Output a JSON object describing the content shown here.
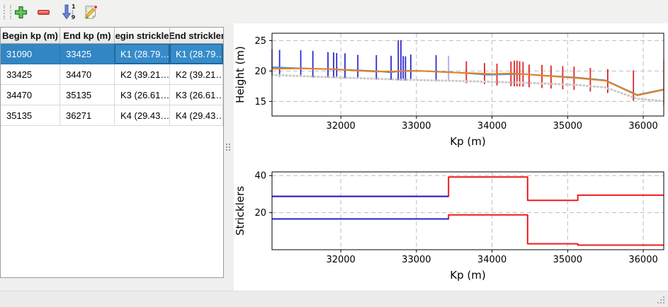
{
  "toolbar": {
    "buttons": [
      {
        "name": "add-row",
        "icon": "plus-icon",
        "color": "#4caf50"
      },
      {
        "name": "remove-row",
        "icon": "minus-icon",
        "color": "#e8504a"
      },
      {
        "name": "sort-rows",
        "icon": "sort-numeric-down-icon",
        "color": "#5f7fd0",
        "digits_top": "1",
        "digits_bottom": "9"
      },
      {
        "name": "edit",
        "icon": "edit-pencil-icon",
        "color": "#f0c040"
      }
    ]
  },
  "table": {
    "headers": [
      "Begin kp (m)",
      "End kp (m)",
      "egin strickle",
      "End strickler"
    ],
    "rows": [
      [
        "31090",
        "33425",
        "K1 (28.79…",
        "K1 (28.79…"
      ],
      [
        "33425",
        "34470",
        "K2 (39.21…",
        "K2 (39.21…"
      ],
      [
        "34470",
        "35135",
        "K3 (26.61…",
        "K3 (26.61…"
      ],
      [
        "35135",
        "36271",
        "K4 (29.43…",
        "K4 (29.43…"
      ]
    ],
    "selected_row_index": 0,
    "selection_color": "#3186c3"
  },
  "chart_data": [
    {
      "type": "line",
      "title": "",
      "xlabel": "Kp (m)",
      "ylabel": "Height (m)",
      "xlim": [
        31090,
        36271
      ],
      "ylim": [
        12.6,
        26.2
      ],
      "xticks": [
        32000,
        33000,
        34000,
        35000,
        36000
      ],
      "yticks": [
        15,
        20,
        25
      ],
      "grid": true,
      "legend": "none",
      "series": [
        {
          "name": "ground-dotted-line",
          "color": "#c9c9c9",
          "width": 3,
          "dash": "1,4",
          "points": [
            [
              31090,
              19.35
            ],
            [
              31800,
              19.0
            ],
            [
              32500,
              18.7
            ],
            [
              33000,
              18.52
            ],
            [
              33500,
              18.38
            ],
            [
              34000,
              18.22
            ],
            [
              34470,
              18.05
            ],
            [
              34800,
              17.88
            ],
            [
              35135,
              17.7
            ],
            [
              35500,
              17.3
            ],
            [
              35920,
              15.45
            ],
            [
              36271,
              15.05
            ]
          ]
        },
        {
          "name": "water-level-blue-line",
          "color": "#4d8fd1",
          "width": 2,
          "points": [
            [
              31090,
              20.62
            ],
            [
              31450,
              20.45
            ],
            [
              31900,
              20.28
            ],
            [
              32250,
              20.1
            ],
            [
              32500,
              19.95
            ],
            [
              32650,
              19.78
            ],
            [
              32800,
              19.98
            ],
            [
              33050,
              20.02
            ],
            [
              33425,
              19.82
            ],
            [
              33700,
              19.6
            ],
            [
              33950,
              19.38
            ],
            [
              34150,
              19.45
            ],
            [
              34400,
              19.5
            ],
            [
              34650,
              19.28
            ],
            [
              34800,
              19.17
            ],
            [
              35135,
              18.9
            ],
            [
              35500,
              18.47
            ],
            [
              35920,
              16.07
            ],
            [
              36271,
              16.97
            ]
          ]
        },
        {
          "name": "bed-level-orange-line",
          "color": "#e8821e",
          "width": 2,
          "points": [
            [
              31090,
              20.35
            ],
            [
              31500,
              20.42
            ],
            [
              31900,
              20.3
            ],
            [
              32200,
              20.05
            ],
            [
              32450,
              19.9
            ],
            [
              32700,
              19.93
            ],
            [
              32900,
              20.08
            ],
            [
              33100,
              19.98
            ],
            [
              33425,
              19.78
            ],
            [
              33800,
              19.62
            ],
            [
              34000,
              19.52
            ],
            [
              34300,
              19.62
            ],
            [
              34500,
              19.4
            ],
            [
              34800,
              19.12
            ],
            [
              35135,
              18.82
            ],
            [
              35500,
              18.4
            ],
            [
              35920,
              15.98
            ],
            [
              36271,
              16.9
            ]
          ]
        }
      ],
      "spikes": [
        {
          "x": 31090,
          "y0": 19.3,
          "y1": 23.6,
          "color": "#9b7fd4"
        },
        {
          "x": 31190,
          "y0": 19.05,
          "y1": 23.45,
          "color": "#2e2bd0"
        },
        {
          "x": 31470,
          "y0": 19.0,
          "y1": 23.4,
          "color": "#2e2bd0"
        },
        {
          "x": 31630,
          "y0": 18.95,
          "y1": 23.3,
          "color": "#2e2bd0"
        },
        {
          "x": 31830,
          "y0": 18.9,
          "y1": 23.1,
          "color": "#2e2bd0"
        },
        {
          "x": 31905,
          "y0": 18.85,
          "y1": 23.05,
          "color": "#2e2bd0"
        },
        {
          "x": 31945,
          "y0": 18.85,
          "y1": 22.95,
          "color": "#2e2bd0"
        },
        {
          "x": 32055,
          "y0": 18.8,
          "y1": 22.9,
          "color": "#2e2bd0"
        },
        {
          "x": 32225,
          "y0": 18.72,
          "y1": 22.65,
          "color": "#2e2bd0"
        },
        {
          "x": 32470,
          "y0": 18.6,
          "y1": 22.6,
          "color": "#2e2bd0"
        },
        {
          "x": 32665,
          "y0": 18.52,
          "y1": 22.5,
          "color": "#2e2bd0"
        },
        {
          "x": 32760,
          "y0": 18.48,
          "y1": 25.05,
          "color": "#2e2bd0"
        },
        {
          "x": 32795,
          "y0": 18.45,
          "y1": 25.05,
          "color": "#2e2bd0"
        },
        {
          "x": 32825,
          "y0": 18.45,
          "y1": 22.45,
          "color": "#2e2bd0"
        },
        {
          "x": 32855,
          "y0": 18.42,
          "y1": 22.4,
          "color": "#2e2bd0"
        },
        {
          "x": 32925,
          "y0": 18.4,
          "y1": 22.7,
          "color": "#2e2bd0"
        },
        {
          "x": 33260,
          "y0": 18.3,
          "y1": 22.6,
          "color": "#2e2bd0"
        },
        {
          "x": 33425,
          "y0": 18.28,
          "y1": 22.5,
          "color": "#b9a3e3"
        },
        {
          "x": 33660,
          "y0": 18.0,
          "y1": 21.6,
          "color": "#e02525"
        },
        {
          "x": 33900,
          "y0": 17.85,
          "y1": 21.3,
          "color": "#e02525"
        },
        {
          "x": 34065,
          "y0": 17.62,
          "y1": 21.2,
          "color": "#e02525"
        },
        {
          "x": 34250,
          "y0": 17.5,
          "y1": 21.55,
          "color": "#e02525"
        },
        {
          "x": 34295,
          "y0": 17.48,
          "y1": 21.7,
          "color": "#e02525"
        },
        {
          "x": 34330,
          "y0": 17.46,
          "y1": 21.7,
          "color": "#e02525"
        },
        {
          "x": 34365,
          "y0": 17.45,
          "y1": 21.6,
          "color": "#e02525"
        },
        {
          "x": 34410,
          "y0": 17.42,
          "y1": 21.5,
          "color": "#e02525"
        },
        {
          "x": 34490,
          "y0": 17.32,
          "y1": 21.05,
          "color": "#e02525"
        },
        {
          "x": 34660,
          "y0": 17.2,
          "y1": 21.0,
          "color": "#e02525"
        },
        {
          "x": 34780,
          "y0": 17.12,
          "y1": 20.9,
          "color": "#e02525"
        },
        {
          "x": 34935,
          "y0": 17.0,
          "y1": 20.8,
          "color": "#e02525"
        },
        {
          "x": 35085,
          "y0": 16.9,
          "y1": 20.7,
          "color": "#e02525"
        },
        {
          "x": 35300,
          "y0": 16.62,
          "y1": 20.5,
          "color": "#e02525"
        },
        {
          "x": 35530,
          "y0": 16.38,
          "y1": 20.3,
          "color": "#e02525"
        },
        {
          "x": 35870,
          "y0": 15.1,
          "y1": 20.1,
          "color": "#e02525"
        },
        {
          "x": 36271,
          "y0": 14.3,
          "y1": 21.9,
          "color": "#f5b8bc"
        }
      ]
    },
    {
      "type": "step",
      "title": "",
      "xlabel": "Kp (m)",
      "ylabel": "Stricklers",
      "xlim": [
        31090,
        36271
      ],
      "ylim": [
        0,
        42
      ],
      "xticks": [
        32000,
        33000,
        34000,
        35000,
        36000
      ],
      "yticks": [
        20,
        40
      ],
      "grid": true,
      "legend": "none",
      "series": [
        {
          "name": "major-strickler-red-step",
          "color": "#ee1c1c",
          "width": 2,
          "points": [
            [
              31090,
              28.79
            ],
            [
              33425,
              28.79
            ],
            [
              33425,
              39.21
            ],
            [
              34470,
              39.21
            ],
            [
              34470,
              26.61
            ],
            [
              35135,
              26.61
            ],
            [
              35135,
              29.43
            ],
            [
              36271,
              29.43
            ]
          ]
        },
        {
          "name": "major-strickler-selected-blue-step",
          "color": "#2020d8",
          "width": 2,
          "points": [
            [
              31090,
              28.79
            ],
            [
              33425,
              28.79
            ]
          ]
        },
        {
          "name": "minor-strickler-red-step",
          "color": "#ee1c1c",
          "width": 2,
          "points": [
            [
              31090,
              16.6
            ],
            [
              33425,
              16.6
            ],
            [
              33425,
              18.8
            ],
            [
              34470,
              18.8
            ],
            [
              34470,
              3.2
            ],
            [
              35135,
              3.2
            ],
            [
              35135,
              2.5
            ],
            [
              36271,
              2.5
            ]
          ]
        },
        {
          "name": "minor-strickler-selected-blue-step",
          "color": "#2020d8",
          "width": 2,
          "points": [
            [
              31090,
              16.6
            ],
            [
              33425,
              16.6
            ]
          ]
        }
      ],
      "spikes": []
    }
  ],
  "statusbar": {
    "text": ""
  }
}
